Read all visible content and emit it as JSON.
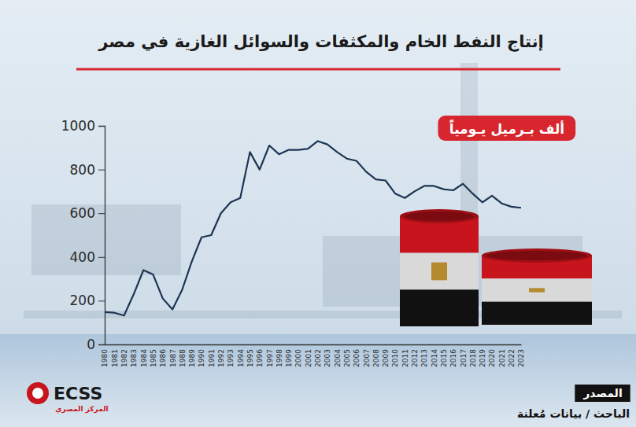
{
  "chart_data": {
    "type": "line",
    "title": "إنتاج النفط الخام والمكثفات والسوائل الغازية في مصر",
    "y_label": "ألف بـرميل يـومياً",
    "x": [
      1980,
      1981,
      1982,
      1983,
      1984,
      1985,
      1986,
      1987,
      1988,
      1989,
      1990,
      1991,
      1992,
      1993,
      1994,
      1995,
      1996,
      1997,
      1998,
      1999,
      2000,
      2001,
      2002,
      2003,
      2004,
      2005,
      2006,
      2007,
      2008,
      2009,
      2010,
      2011,
      2012,
      2013,
      2014,
      2015,
      2016,
      2017,
      2018,
      2019,
      2020,
      2021,
      2022,
      2023
    ],
    "values": [
      148,
      145,
      132,
      230,
      340,
      320,
      210,
      160,
      250,
      380,
      490,
      500,
      600,
      650,
      670,
      880,
      800,
      910,
      870,
      890,
      890,
      895,
      930,
      915,
      880,
      850,
      840,
      790,
      755,
      750,
      690,
      670,
      700,
      725,
      725,
      710,
      705,
      735,
      690,
      650,
      680,
      645,
      630,
      625
    ],
    "color": "#1d3553",
    "xlim": [
      1980,
      2023
    ],
    "xticks": [
      1980,
      1981,
      1982,
      1983,
      1984,
      1985,
      1986,
      1987,
      1988,
      1989,
      1990,
      1991,
      1992,
      1993,
      1994,
      1995,
      1996,
      1997,
      1998,
      1999,
      2000,
      2001,
      2002,
      2003,
      2004,
      2005,
      2006,
      2007,
      2008,
      2009,
      2010,
      2011,
      2012,
      2013,
      2014,
      2015,
      2016,
      2017,
      2018,
      2019,
      2020,
      2021,
      2022,
      2023
    ],
    "ylim": [
      0,
      1000
    ],
    "yticks": [
      0,
      200,
      400,
      600,
      800,
      1000
    ],
    "grid": false,
    "source_label": "المصدر",
    "source": "الباحث / بيانات مُعلنة",
    "logo_text": "ECSS",
    "logo_subtitle": "المركز المصري"
  }
}
